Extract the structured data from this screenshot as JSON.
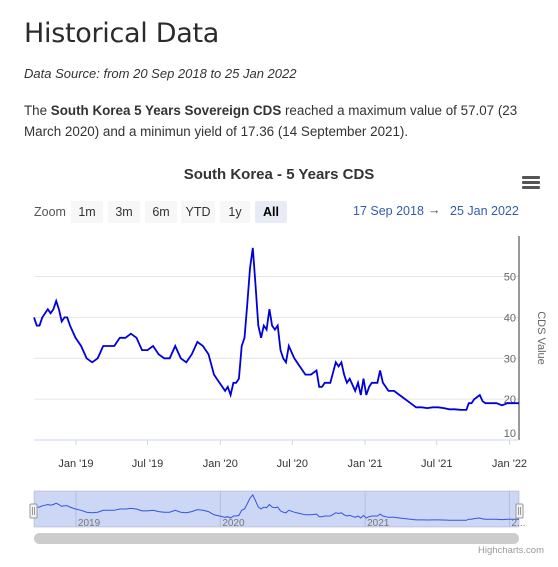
{
  "page_title": "Historical Data",
  "source_text": "Data Source: from 20 Sep 2018 to 25 Jan 2022",
  "summary": {
    "prefix": "The ",
    "bold": "South Korea 5 Years Sovereign CDS",
    "rest": " reached a maximum value of 57.07 (23 March 2020) and a minimun yield of 17.36 (14 September 2021)."
  },
  "toolbar": {
    "zoom_label": "Zoom",
    "buttons": [
      "1m",
      "3m",
      "6m",
      "YTD",
      "1y",
      "All"
    ],
    "active": "All",
    "date_from": "17 Sep 2018",
    "arrow": "→",
    "date_to": "25 Jan 2022",
    "menu_icon": "hamburger-menu-icon"
  },
  "credit": "Highcharts.com",
  "colors": {
    "line": "#0000dd",
    "navigator_fill": "#ccd6f5",
    "link": "#335cad"
  },
  "chart_data": {
    "type": "line",
    "title": "South Korea - 5 Years CDS",
    "ylabel": "CDS Value",
    "ylim": [
      10,
      55
    ],
    "yticks": [
      10,
      20,
      30,
      40,
      50
    ],
    "xticks": [
      {
        "label": "Jan '19",
        "date": "2019-01-01"
      },
      {
        "label": "Jul '19",
        "date": "2019-07-01"
      },
      {
        "label": "Jan '20",
        "date": "2020-01-01"
      },
      {
        "label": "Jul '20",
        "date": "2020-07-01"
      },
      {
        "label": "Jan '21",
        "date": "2021-01-01"
      },
      {
        "label": "Jul '21",
        "date": "2021-07-01"
      },
      {
        "label": "Jan '22",
        "date": "2022-01-01"
      }
    ],
    "navigator_labels": [
      "2019",
      "2020",
      "2021",
      "2..."
    ],
    "x_range": [
      "2018-09-17",
      "2022-01-25"
    ],
    "grid": true,
    "series": [
      {
        "values": [
          [
            "2018-09-17",
            40
          ],
          [
            "2018-09-24",
            38
          ],
          [
            "2018-10-01",
            38
          ],
          [
            "2018-10-08",
            40
          ],
          [
            "2018-10-15",
            41
          ],
          [
            "2018-10-22",
            42
          ],
          [
            "2018-10-29",
            41
          ],
          [
            "2018-11-05",
            42
          ],
          [
            "2018-11-12",
            44
          ],
          [
            "2018-11-19",
            42
          ],
          [
            "2018-11-26",
            39
          ],
          [
            "2018-12-03",
            40
          ],
          [
            "2018-12-10",
            40
          ],
          [
            "2018-12-17",
            38
          ],
          [
            "2018-12-31",
            35
          ],
          [
            "2019-01-14",
            33
          ],
          [
            "2019-01-28",
            30
          ],
          [
            "2019-02-11",
            29
          ],
          [
            "2019-02-25",
            30
          ],
          [
            "2019-03-11",
            33
          ],
          [
            "2019-03-25",
            33
          ],
          [
            "2019-04-08",
            33
          ],
          [
            "2019-04-22",
            35
          ],
          [
            "2019-05-06",
            35
          ],
          [
            "2019-05-20",
            36
          ],
          [
            "2019-06-03",
            35
          ],
          [
            "2019-06-17",
            32
          ],
          [
            "2019-07-01",
            32
          ],
          [
            "2019-07-15",
            33
          ],
          [
            "2019-07-29",
            31
          ],
          [
            "2019-08-12",
            30
          ],
          [
            "2019-08-26",
            30
          ],
          [
            "2019-09-09",
            33
          ],
          [
            "2019-09-23",
            30
          ],
          [
            "2019-10-07",
            29
          ],
          [
            "2019-10-21",
            31
          ],
          [
            "2019-11-04",
            34
          ],
          [
            "2019-11-18",
            33
          ],
          [
            "2019-12-02",
            31
          ],
          [
            "2019-12-16",
            26
          ],
          [
            "2019-12-30",
            24
          ],
          [
            "2020-01-13",
            22
          ],
          [
            "2020-01-20",
            23
          ],
          [
            "2020-01-27",
            21
          ],
          [
            "2020-02-03",
            24
          ],
          [
            "2020-02-10",
            24
          ],
          [
            "2020-02-17",
            25
          ],
          [
            "2020-02-24",
            33
          ],
          [
            "2020-03-02",
            35
          ],
          [
            "2020-03-09",
            43
          ],
          [
            "2020-03-16",
            52
          ],
          [
            "2020-03-23",
            57
          ],
          [
            "2020-03-30",
            48
          ],
          [
            "2020-04-06",
            38
          ],
          [
            "2020-04-13",
            35
          ],
          [
            "2020-04-20",
            38
          ],
          [
            "2020-04-27",
            37
          ],
          [
            "2020-05-04",
            42
          ],
          [
            "2020-05-11",
            38
          ],
          [
            "2020-05-18",
            37
          ],
          [
            "2020-05-25",
            38
          ],
          [
            "2020-06-01",
            32
          ],
          [
            "2020-06-08",
            30
          ],
          [
            "2020-06-15",
            29
          ],
          [
            "2020-06-22",
            33
          ],
          [
            "2020-07-06",
            30
          ],
          [
            "2020-07-20",
            28
          ],
          [
            "2020-08-03",
            26
          ],
          [
            "2020-08-17",
            26
          ],
          [
            "2020-08-31",
            27
          ],
          [
            "2020-09-07",
            23
          ],
          [
            "2020-09-14",
            23
          ],
          [
            "2020-09-21",
            24
          ],
          [
            "2020-10-05",
            24
          ],
          [
            "2020-10-19",
            29
          ],
          [
            "2020-10-26",
            28
          ],
          [
            "2020-11-02",
            29
          ],
          [
            "2020-11-09",
            26
          ],
          [
            "2020-11-16",
            24
          ],
          [
            "2020-11-23",
            25
          ],
          [
            "2020-12-07",
            22
          ],
          [
            "2020-12-14",
            24
          ],
          [
            "2020-12-21",
            21
          ],
          [
            "2020-12-28",
            25
          ],
          [
            "2021-01-04",
            21
          ],
          [
            "2021-01-11",
            23
          ],
          [
            "2021-01-18",
            24
          ],
          [
            "2021-02-01",
            24
          ],
          [
            "2021-02-08",
            27
          ],
          [
            "2021-02-15",
            24
          ],
          [
            "2021-03-01",
            22
          ],
          [
            "2021-03-15",
            22
          ],
          [
            "2021-03-29",
            21
          ],
          [
            "2021-04-12",
            20
          ],
          [
            "2021-04-26",
            19
          ],
          [
            "2021-05-10",
            18
          ],
          [
            "2021-05-24",
            18
          ],
          [
            "2021-06-07",
            17.8
          ],
          [
            "2021-06-21",
            18
          ],
          [
            "2021-07-05",
            18
          ],
          [
            "2021-07-19",
            17.8
          ],
          [
            "2021-08-02",
            17.5
          ],
          [
            "2021-08-16",
            17.5
          ],
          [
            "2021-08-30",
            17.4
          ],
          [
            "2021-09-14",
            17.36
          ],
          [
            "2021-09-20",
            19
          ],
          [
            "2021-09-27",
            19
          ],
          [
            "2021-10-04",
            20
          ],
          [
            "2021-10-11",
            20.5
          ],
          [
            "2021-10-18",
            21
          ],
          [
            "2021-10-25",
            19.5
          ],
          [
            "2021-11-01",
            19
          ],
          [
            "2021-11-15",
            19
          ],
          [
            "2021-11-29",
            19
          ],
          [
            "2021-12-13",
            18.5
          ],
          [
            "2021-12-27",
            19
          ],
          [
            "2022-01-10",
            19
          ],
          [
            "2022-01-25",
            19
          ]
        ]
      }
    ]
  }
}
